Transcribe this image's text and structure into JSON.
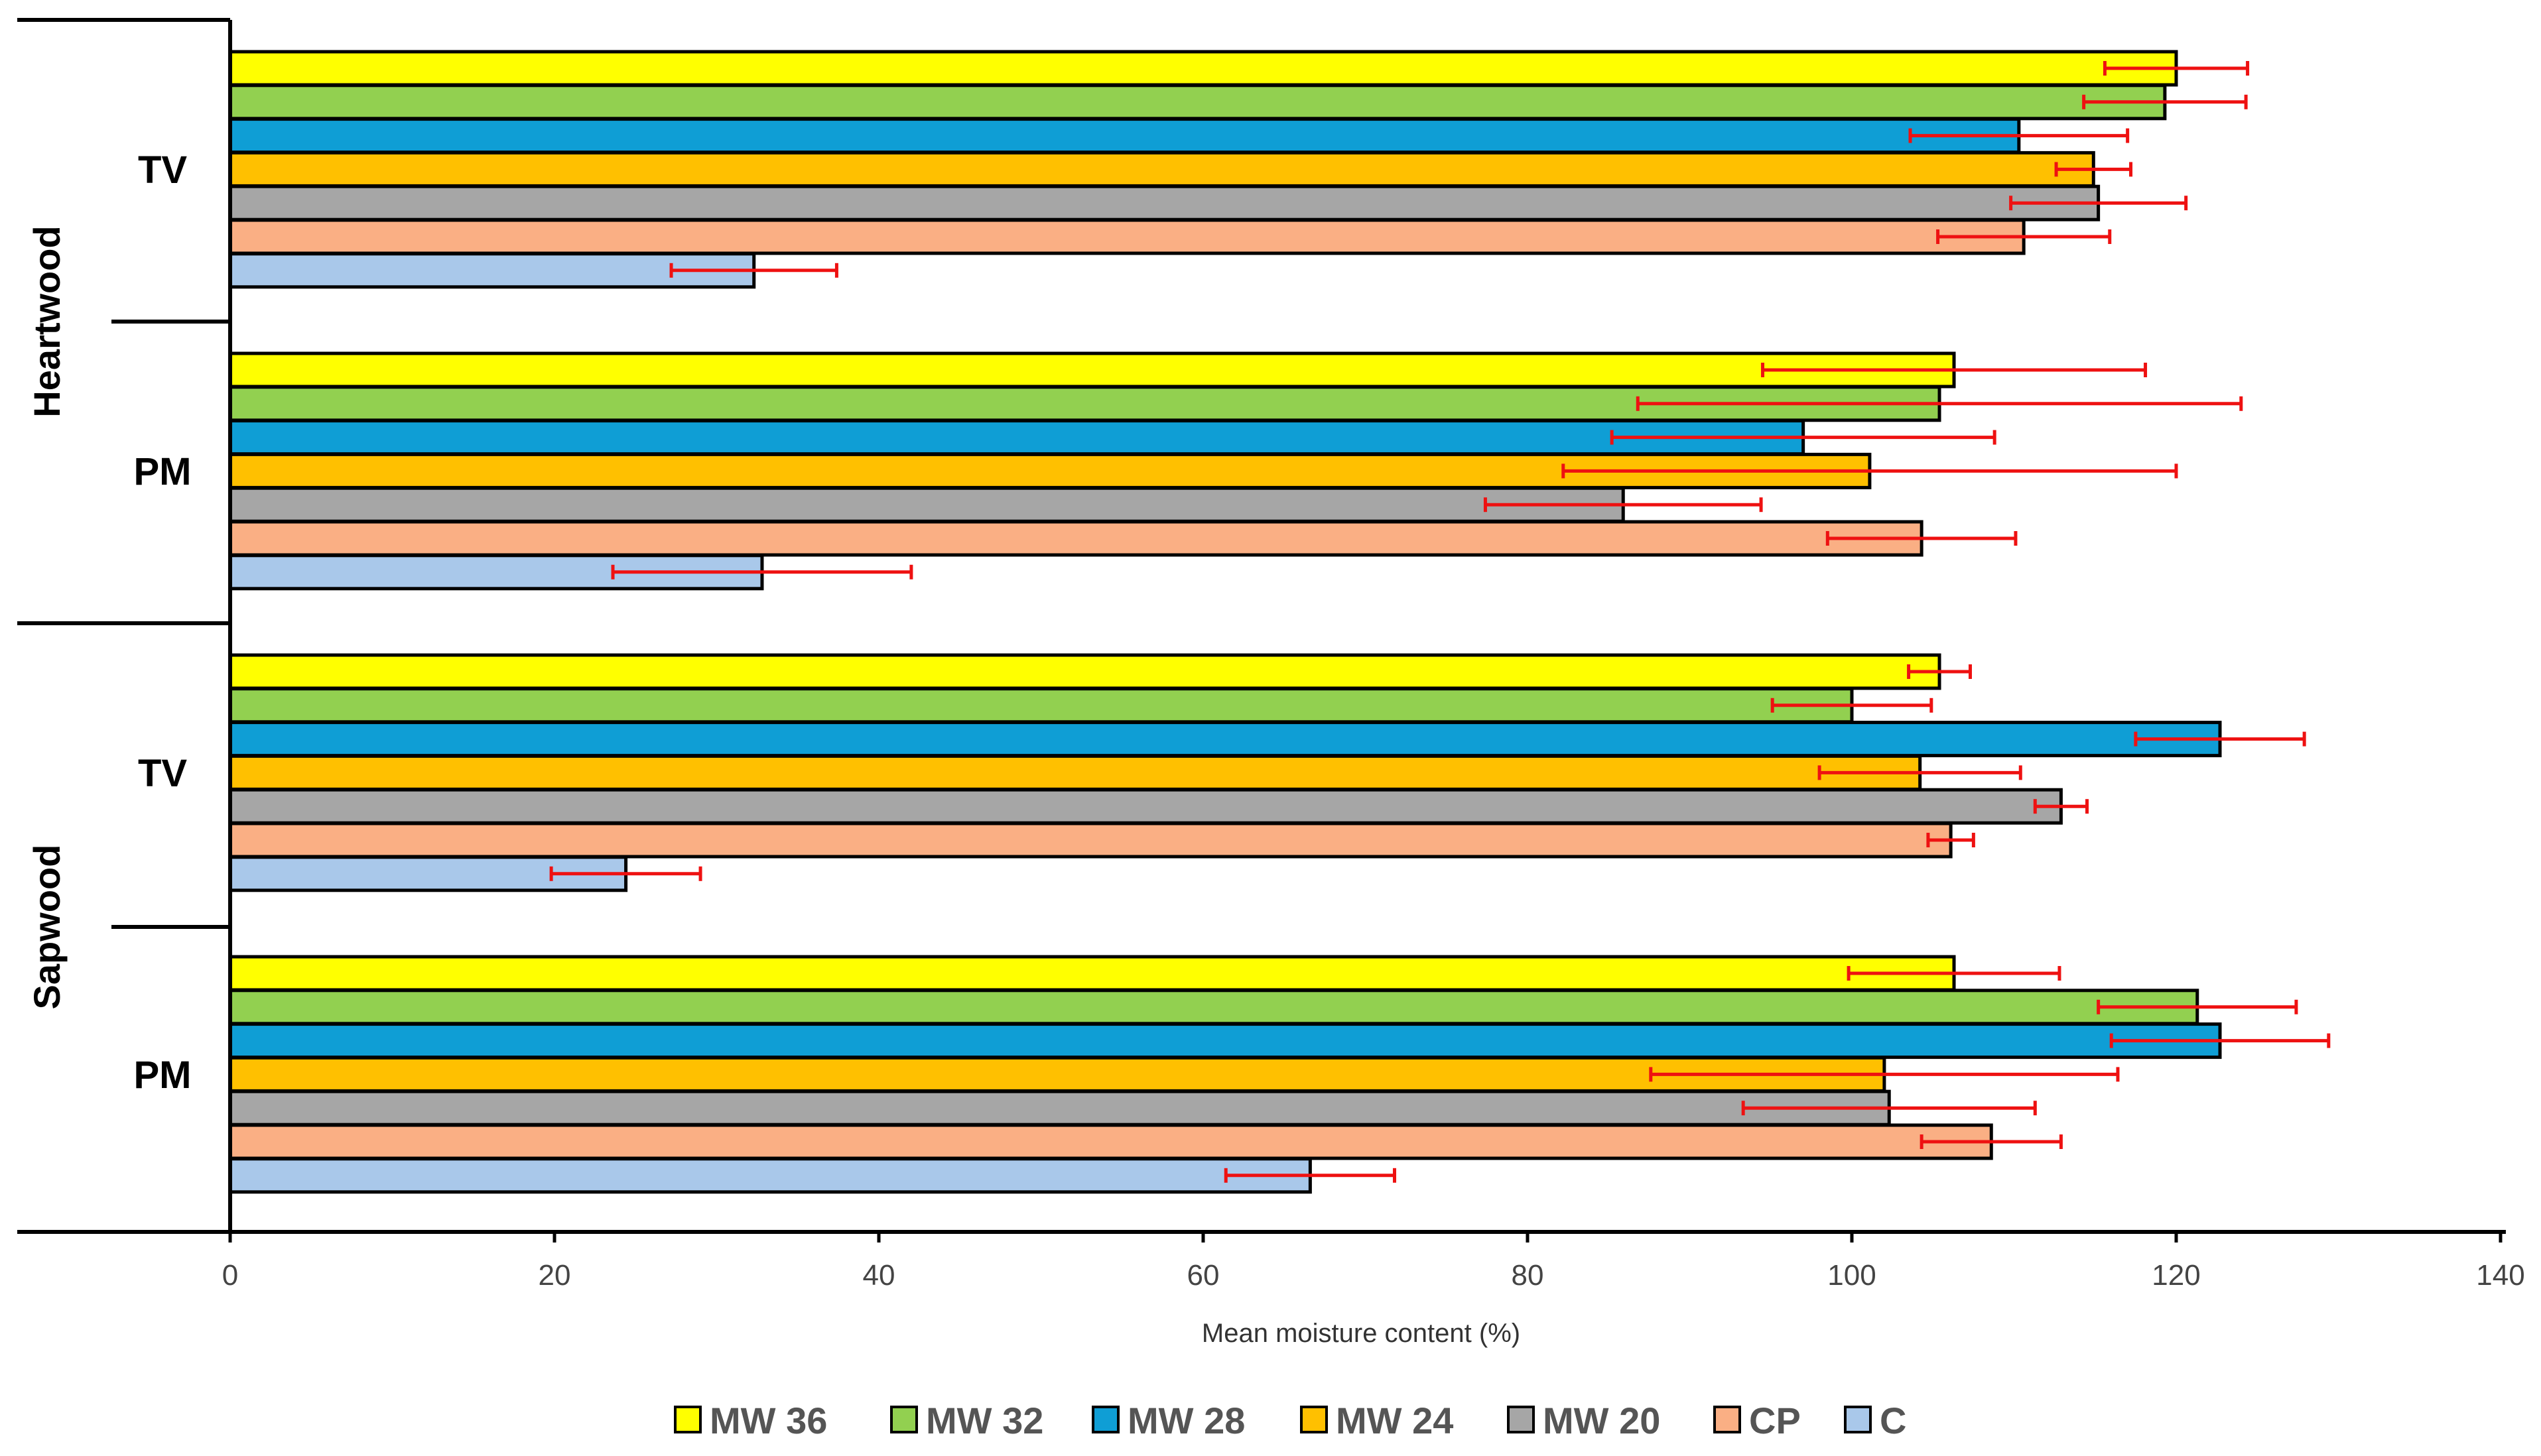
{
  "chart_data": {
    "type": "bar",
    "orientation": "horizontal",
    "xlabel": "Mean moisture content (%)",
    "xlim": [
      0,
      140
    ],
    "xticks": [
      0,
      20,
      40,
      60,
      80,
      100,
      120,
      140
    ],
    "grid": false,
    "legend_position": "bottom",
    "outer_categories": [
      "Heartwood",
      "Sapwood"
    ],
    "inner_categories": [
      "TV",
      "PM"
    ],
    "series": [
      {
        "name": "MW 36",
        "color": "#FFFF00",
        "values": [
          120,
          106.3,
          105.4,
          106.3
        ],
        "errors": [
          4.4,
          11.8,
          1.9,
          6.5
        ]
      },
      {
        "name": "MW 32",
        "color": "#92D050",
        "values": [
          119.3,
          105.4,
          100,
          121.3
        ],
        "errors": [
          5,
          18.6,
          4.9,
          6.1
        ]
      },
      {
        "name": "MW 28",
        "color": "#0F9ED5",
        "values": [
          110.3,
          97,
          122.7,
          122.7
        ],
        "errors": [
          6.7,
          11.8,
          5.2,
          6.7
        ]
      },
      {
        "name": "MW 24",
        "color": "#FFC000",
        "values": [
          114.9,
          101.1,
          104.2,
          102
        ],
        "errors": [
          2.3,
          18.9,
          6.2,
          14.4
        ]
      },
      {
        "name": "MW 20",
        "color": "#A6A6A6",
        "values": [
          115.2,
          85.9,
          112.9,
          102.3
        ],
        "errors": [
          5.4,
          8.5,
          1.6,
          9
        ]
      },
      {
        "name": "CP",
        "color": "#FAAF84",
        "values": [
          110.6,
          104.3,
          106.1,
          108.6
        ],
        "errors": [
          5.3,
          5.8,
          1.4,
          4.3
        ]
      },
      {
        "name": "C",
        "color": "#A9C8EA",
        "values": [
          32.3,
          32.8,
          24.4,
          66.6
        ],
        "errors": [
          5.1,
          9.2,
          4.6,
          5.2
        ]
      }
    ]
  }
}
